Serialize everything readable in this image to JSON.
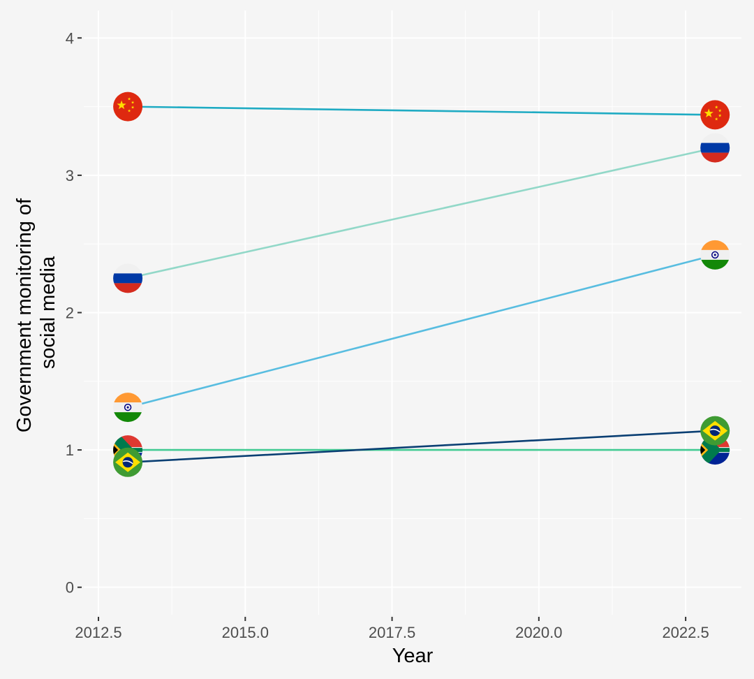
{
  "chart_data": {
    "type": "line",
    "xlabel": "Year",
    "ylabel_lines": [
      "Government monitoring of",
      "social media"
    ],
    "xlim": [
      2012.25,
      2023.45
    ],
    "ylim": [
      -0.2,
      4.2
    ],
    "x_ticks": [
      2012.5,
      2015.0,
      2017.5,
      2020.0,
      2022.5
    ],
    "x_tick_labels": [
      "2012.5",
      "2015.0",
      "2017.5",
      "2020.0",
      "2022.5"
    ],
    "y_ticks": [
      0,
      1,
      2,
      3,
      4
    ],
    "y_tick_labels": [
      "0",
      "1",
      "2",
      "3",
      "4"
    ],
    "grid": true,
    "series": [
      {
        "flag": "china-flag",
        "color": "#1fabc3",
        "x": [
          2013,
          2023
        ],
        "y": [
          3.5,
          3.44
        ]
      },
      {
        "flag": "russia-flag",
        "color": "#92d8c8",
        "x": [
          2013,
          2023
        ],
        "y": [
          2.25,
          3.2
        ]
      },
      {
        "flag": "india-flag",
        "color": "#58bde0",
        "x": [
          2013,
          2023
        ],
        "y": [
          1.31,
          2.42
        ]
      },
      {
        "flag": "south-africa-flag",
        "color": "#42cb93",
        "x": [
          2013,
          2023
        ],
        "y": [
          1.0,
          1.0
        ]
      },
      {
        "flag": "brazil-flag",
        "color": "#0a3f73",
        "x": [
          2013,
          2023
        ],
        "y": [
          0.91,
          1.14
        ]
      }
    ]
  }
}
